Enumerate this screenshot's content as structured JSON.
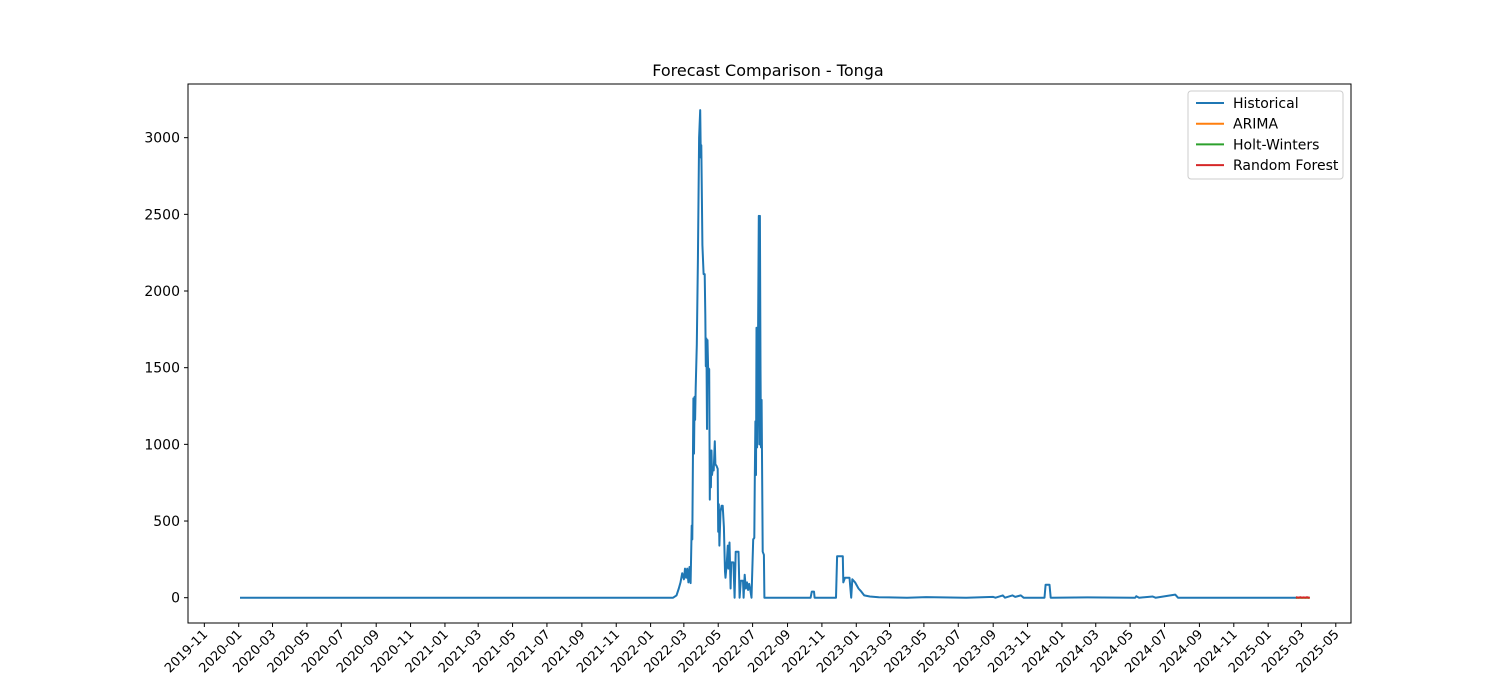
{
  "chart_data": {
    "type": "line",
    "title": "Forecast Comparison - Tonga",
    "xlabel": "",
    "ylabel": "",
    "x_axis_type": "date",
    "xlim": [
      "2019-10-03",
      "2025-05-28"
    ],
    "ylim": [
      -165,
      3350
    ],
    "grid": false,
    "legend_position": "upper right",
    "x_ticks": [
      "2019-11",
      "2020-01",
      "2020-03",
      "2020-05",
      "2020-07",
      "2020-09",
      "2020-11",
      "2021-01",
      "2021-03",
      "2021-05",
      "2021-07",
      "2021-09",
      "2021-11",
      "2022-01",
      "2022-03",
      "2022-05",
      "2022-07",
      "2022-09",
      "2022-11",
      "2023-01",
      "2023-03",
      "2023-05",
      "2023-07",
      "2023-09",
      "2023-11",
      "2024-01",
      "2024-03",
      "2024-05",
      "2024-07",
      "2024-09",
      "2024-11",
      "2025-01",
      "2025-03",
      "2025-05"
    ],
    "y_ticks": [
      0,
      500,
      1000,
      1500,
      2000,
      2500,
      3000
    ],
    "series": [
      {
        "name": "Historical",
        "color": "#1f77b4",
        "points": [
          [
            "2020-01-05",
            0
          ],
          [
            "2021-11-01",
            0
          ],
          [
            "2022-02-10",
            0
          ],
          [
            "2022-02-16",
            15
          ],
          [
            "2022-02-20",
            60
          ],
          [
            "2022-02-23",
            100
          ],
          [
            "2022-02-26",
            160
          ],
          [
            "2022-03-01",
            120
          ],
          [
            "2022-03-03",
            190
          ],
          [
            "2022-03-05",
            130
          ],
          [
            "2022-03-07",
            190
          ],
          [
            "2022-03-09",
            100
          ],
          [
            "2022-03-11",
            200
          ],
          [
            "2022-03-13",
            95
          ],
          [
            "2022-03-15",
            470
          ],
          [
            "2022-03-16",
            380
          ],
          [
            "2022-03-18",
            1300
          ],
          [
            "2022-03-19",
            940
          ],
          [
            "2022-03-20",
            1310
          ],
          [
            "2022-03-21",
            1160
          ],
          [
            "2022-03-22",
            1370
          ],
          [
            "2022-03-24",
            1650
          ],
          [
            "2022-03-26",
            2200
          ],
          [
            "2022-03-27",
            2600
          ],
          [
            "2022-03-28",
            3000
          ],
          [
            "2022-03-30",
            3180
          ],
          [
            "2022-03-31",
            2870
          ],
          [
            "2022-04-01",
            2950
          ],
          [
            "2022-04-02",
            2600
          ],
          [
            "2022-04-03",
            2300
          ],
          [
            "2022-04-05",
            2110
          ],
          [
            "2022-04-07",
            2110
          ],
          [
            "2022-04-08",
            1850
          ],
          [
            "2022-04-09",
            1510
          ],
          [
            "2022-04-10",
            1690
          ],
          [
            "2022-04-11",
            1100
          ],
          [
            "2022-04-12",
            1680
          ],
          [
            "2022-04-13",
            1500
          ],
          [
            "2022-04-15",
            1490
          ],
          [
            "2022-04-16",
            640
          ],
          [
            "2022-04-17",
            960
          ],
          [
            "2022-04-18",
            720
          ],
          [
            "2022-04-19",
            960
          ],
          [
            "2022-04-20",
            800
          ],
          [
            "2022-04-21",
            830
          ],
          [
            "2022-04-23",
            830
          ],
          [
            "2022-04-25",
            1020
          ],
          [
            "2022-04-26",
            870
          ],
          [
            "2022-04-28",
            860
          ],
          [
            "2022-04-30",
            840
          ],
          [
            "2022-05-01",
            430
          ],
          [
            "2022-05-02",
            610
          ],
          [
            "2022-05-03",
            340
          ],
          [
            "2022-05-05",
            560
          ],
          [
            "2022-05-07",
            600
          ],
          [
            "2022-05-09",
            600
          ],
          [
            "2022-05-11",
            460
          ],
          [
            "2022-05-13",
            170
          ],
          [
            "2022-05-14",
            130
          ],
          [
            "2022-05-16",
            220
          ],
          [
            "2022-05-18",
            340
          ],
          [
            "2022-05-19",
            190
          ],
          [
            "2022-05-21",
            360
          ],
          [
            "2022-05-23",
            60
          ],
          [
            "2022-05-24",
            230
          ],
          [
            "2022-05-28",
            230
          ],
          [
            "2022-05-30",
            0
          ],
          [
            "2022-06-01",
            300
          ],
          [
            "2022-06-06",
            300
          ],
          [
            "2022-06-08",
            0
          ],
          [
            "2022-06-10",
            110
          ],
          [
            "2022-06-14",
            110
          ],
          [
            "2022-06-15",
            0
          ],
          [
            "2022-06-17",
            150
          ],
          [
            "2022-06-19",
            60
          ],
          [
            "2022-06-21",
            100
          ],
          [
            "2022-06-23",
            50
          ],
          [
            "2022-06-25",
            90
          ],
          [
            "2022-06-27",
            50
          ],
          [
            "2022-06-29",
            0
          ],
          [
            "2022-07-02",
            380
          ],
          [
            "2022-07-04",
            390
          ],
          [
            "2022-07-05",
            780
          ],
          [
            "2022-07-06",
            1150
          ],
          [
            "2022-07-07",
            800
          ],
          [
            "2022-07-08",
            1760
          ],
          [
            "2022-07-09",
            980
          ],
          [
            "2022-07-10",
            1330
          ],
          [
            "2022-07-12",
            2490
          ],
          [
            "2022-07-13",
            1000
          ],
          [
            "2022-07-14",
            2490
          ],
          [
            "2022-07-15",
            1500
          ],
          [
            "2022-07-16",
            980
          ],
          [
            "2022-07-17",
            1290
          ],
          [
            "2022-07-19",
            300
          ],
          [
            "2022-07-21",
            280
          ],
          [
            "2022-07-22",
            0
          ],
          [
            "2022-10-12",
            0
          ],
          [
            "2022-10-14",
            40
          ],
          [
            "2022-10-18",
            40
          ],
          [
            "2022-10-19",
            0
          ],
          [
            "2022-11-26",
            0
          ],
          [
            "2022-11-28",
            270
          ],
          [
            "2022-12-08",
            270
          ],
          [
            "2022-12-09",
            100
          ],
          [
            "2022-12-12",
            130
          ],
          [
            "2022-12-20",
            130
          ],
          [
            "2022-12-23",
            0
          ],
          [
            "2022-12-25",
            120
          ],
          [
            "2022-12-30",
            100
          ],
          [
            "2023-01-05",
            60
          ],
          [
            "2023-01-10",
            40
          ],
          [
            "2023-01-15",
            15
          ],
          [
            "2023-01-25",
            8
          ],
          [
            "2023-02-10",
            3
          ],
          [
            "2023-04-01",
            0
          ],
          [
            "2023-05-05",
            4
          ],
          [
            "2023-07-15",
            0
          ],
          [
            "2023-09-01",
            5
          ],
          [
            "2023-09-05",
            0
          ],
          [
            "2023-09-18",
            15
          ],
          [
            "2023-09-22",
            0
          ],
          [
            "2023-10-05",
            15
          ],
          [
            "2023-10-10",
            5
          ],
          [
            "2023-10-20",
            15
          ],
          [
            "2023-10-25",
            0
          ],
          [
            "2023-12-01",
            0
          ],
          [
            "2023-12-03",
            85
          ],
          [
            "2023-12-10",
            85
          ],
          [
            "2023-12-12",
            0
          ],
          [
            "2024-02-15",
            2
          ],
          [
            "2024-05-10",
            0
          ],
          [
            "2024-05-12",
            10
          ],
          [
            "2024-05-17",
            0
          ],
          [
            "2024-06-10",
            8
          ],
          [
            "2024-06-15",
            0
          ],
          [
            "2024-07-20",
            20
          ],
          [
            "2024-07-25",
            0
          ],
          [
            "2025-02-20",
            0
          ]
        ]
      },
      {
        "name": "ARIMA",
        "color": "#ff7f0e",
        "points": [
          [
            "2025-02-21",
            0
          ],
          [
            "2025-03-14",
            0
          ]
        ]
      },
      {
        "name": "Holt-Winters",
        "color": "#2ca02c",
        "points": [
          [
            "2025-02-21",
            0
          ],
          [
            "2025-03-14",
            0
          ]
        ]
      },
      {
        "name": "Random Forest",
        "color": "#d62728",
        "points": [
          [
            "2025-02-21",
            2
          ],
          [
            "2025-02-24",
            0
          ],
          [
            "2025-02-27",
            3
          ],
          [
            "2025-03-02",
            0
          ],
          [
            "2025-03-05",
            2
          ],
          [
            "2025-03-08",
            0
          ],
          [
            "2025-03-11",
            3
          ],
          [
            "2025-03-14",
            0
          ]
        ]
      }
    ]
  }
}
